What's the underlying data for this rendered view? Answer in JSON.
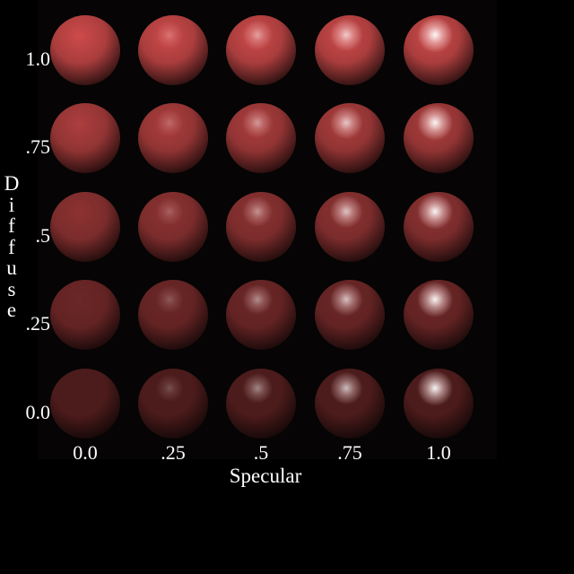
{
  "figure": {
    "x_axis_title": "Specular",
    "y_axis_title": "Diffuse",
    "specular_levels": [
      "0.0",
      ".25",
      ".5",
      ".75",
      "1.0"
    ],
    "diffuse_levels": [
      "1.0",
      ".75",
      ".5",
      ".25",
      "0.0"
    ],
    "specular_values": [
      0.0,
      0.25,
      0.5,
      0.75,
      1.0
    ],
    "diffuse_values": [
      1.0,
      0.75,
      0.5,
      0.25,
      0.0
    ],
    "base_color": "#d24b4b",
    "background_color": "#000000",
    "panel_color": "#060404"
  }
}
